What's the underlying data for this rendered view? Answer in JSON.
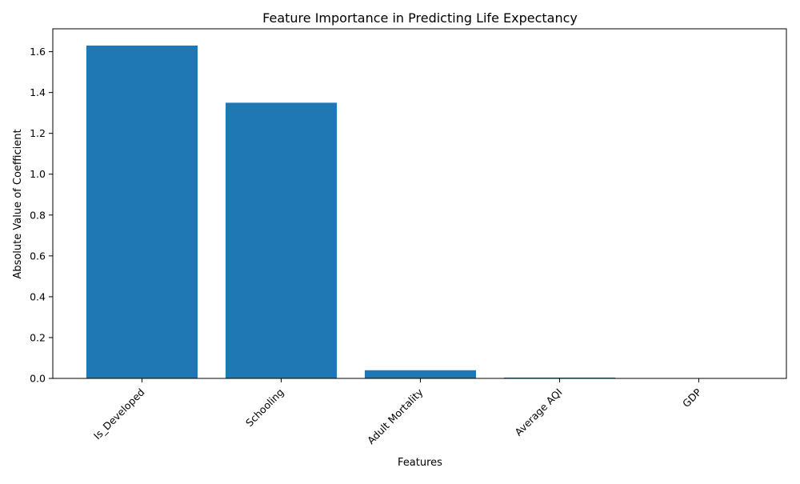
{
  "chart_data": {
    "type": "bar",
    "title": "Feature Importance in Predicting Life Expectancy",
    "xlabel": "Features",
    "ylabel": "Absolute Value of Coefficient",
    "categories": [
      "Is_Developed",
      "Schooling",
      "Adult Mortality",
      "Average AQI",
      "GDP"
    ],
    "values": [
      1.63,
      1.35,
      0.04,
      0.004,
      0.0001
    ],
    "ylim": [
      0,
      1.712
    ],
    "yticks": [
      "0.0",
      "0.2",
      "0.4",
      "0.6",
      "0.8",
      "1.0",
      "1.2",
      "1.4",
      "1.6"
    ],
    "grid": false,
    "legend": "none",
    "bar_color": "#1f77b4",
    "xtick_rotation": "45deg"
  }
}
